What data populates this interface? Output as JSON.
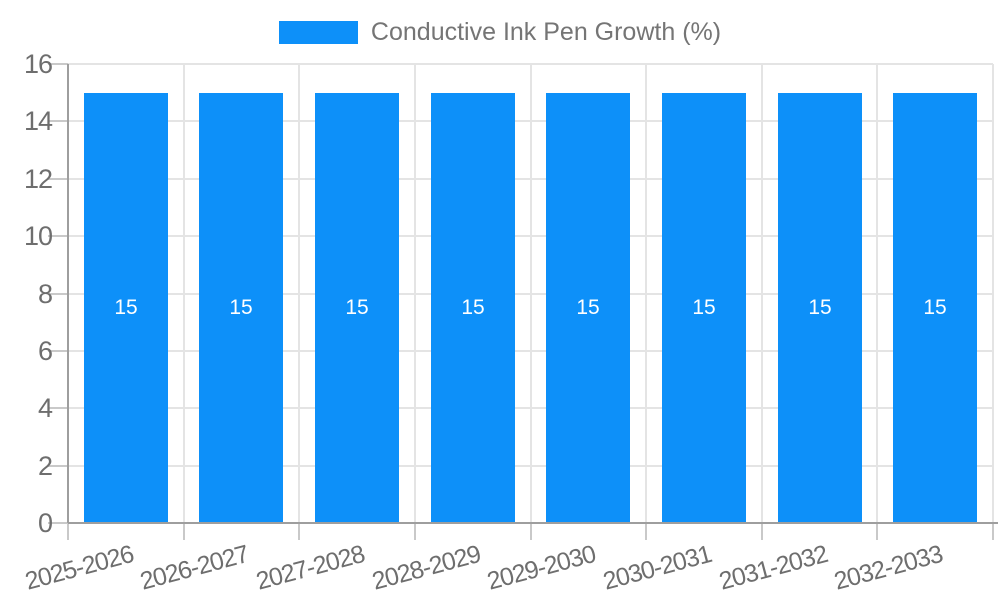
{
  "legend": {
    "label": "Conductive Ink Pen Growth (%)"
  },
  "colors": {
    "bar": "#0d90f9",
    "bar_label": "#ffffff",
    "axis_line": "#9e9e9e",
    "grid_line": "#e4e4e4",
    "tick_mark": "#c9c9c9",
    "tick_label": "#6e6e6e",
    "legend_text": "#757575",
    "background": "#ffffff"
  },
  "chart_data": {
    "type": "bar",
    "title": "Conductive Ink Pen Growth (%)",
    "categories": [
      "2025-2026",
      "2026-2027",
      "2027-2028",
      "2028-2029",
      "2029-2030",
      "2030-2031",
      "2031-2032",
      "2032-2033"
    ],
    "values": [
      15,
      15,
      15,
      15,
      15,
      15,
      15,
      15
    ],
    "bar_labels": [
      "15",
      "15",
      "15",
      "15",
      "15",
      "15",
      "15",
      "15"
    ],
    "xlabel": "",
    "ylabel": "",
    "ylim": [
      0,
      16
    ],
    "yticks": [
      0,
      2,
      4,
      6,
      8,
      10,
      12,
      14,
      16
    ],
    "grid": true,
    "legend_position": "top",
    "x_label_rotation_deg": -15
  }
}
